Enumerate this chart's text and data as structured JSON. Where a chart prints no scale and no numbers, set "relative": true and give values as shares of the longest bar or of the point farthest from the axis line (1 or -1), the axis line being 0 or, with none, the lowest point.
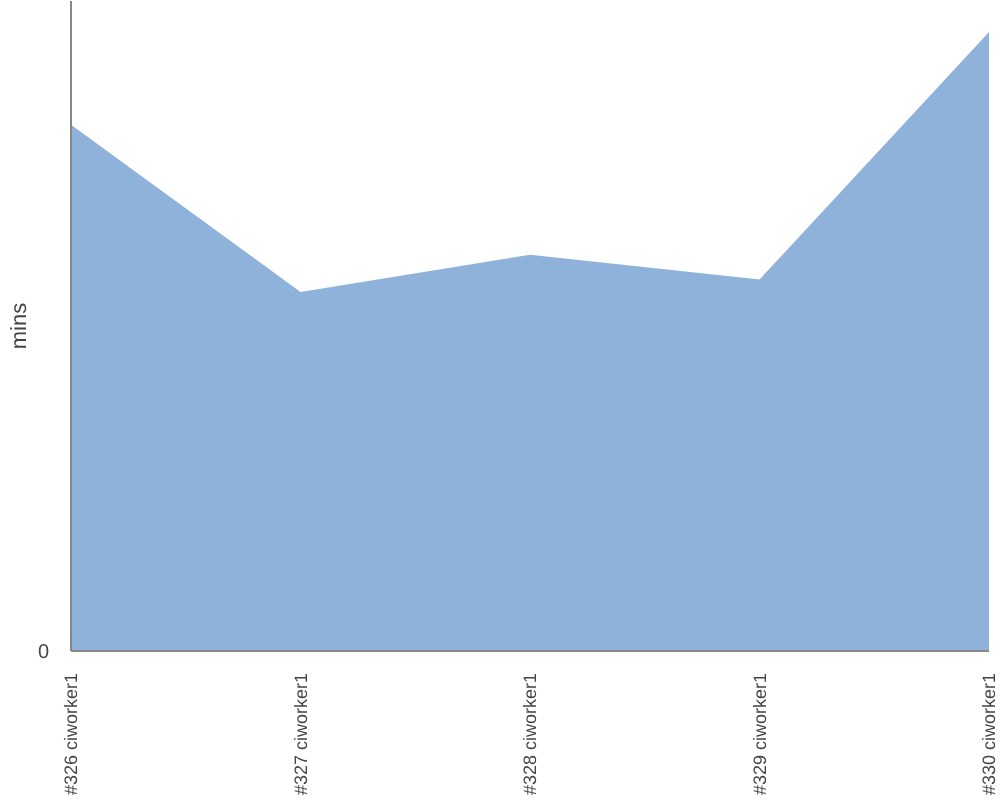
{
  "chart_data": {
    "type": "area",
    "relative": true,
    "ylabel": "mins",
    "annotations": [
      "0"
    ],
    "categories": [
      "#326 ciworker1",
      "#327 ciworker1",
      "#328 ciworker1",
      "#329 ciworker1",
      "#330 ciworker1"
    ],
    "series": [
      {
        "color": "#8fb2db",
        "values": [
          0.85,
          0.58,
          0.64,
          0.6,
          1
        ]
      }
    ],
    "grid": false
  }
}
